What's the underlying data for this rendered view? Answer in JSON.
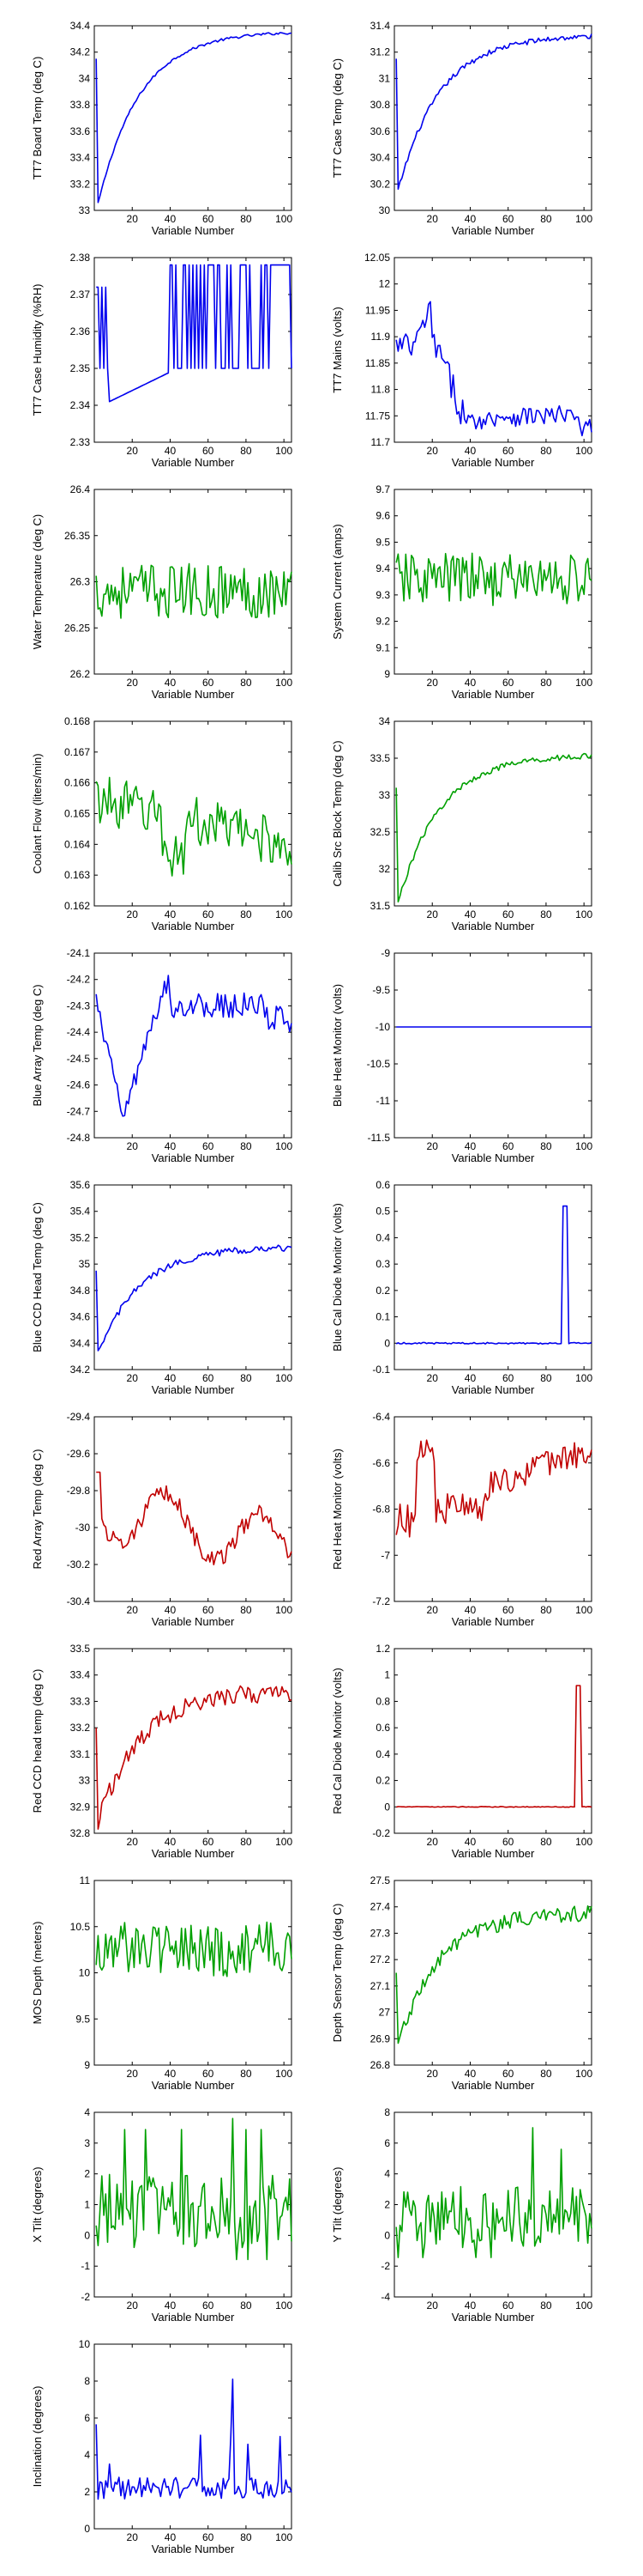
{
  "figure": {
    "xlabel": "Variable Number",
    "colors": {
      "blue": "#0000ee",
      "green": "#00a000",
      "red": "#c00000"
    }
  },
  "chart_data": [
    {
      "type": "line",
      "ylabel": "TT7 Board Temp (deg C)",
      "xlabel": "Variable Number",
      "color": "blue",
      "xlim": [
        0,
        104
      ],
      "xticks": [
        20,
        40,
        60,
        80,
        100
      ],
      "ylim": [
        33,
        34.4
      ],
      "yticks": [
        "33",
        "33.2",
        "33.4",
        "33.6",
        "33.8",
        "34",
        "34.2",
        "34.4"
      ],
      "pattern": "rise",
      "start": 33.05,
      "end": 34.36,
      "noise": 0.01,
      "spike_at_start": 34.15
    },
    {
      "type": "line",
      "ylabel": "TT7 Case Temp (deg C)",
      "xlabel": "Variable Number",
      "color": "blue",
      "xlim": [
        0,
        104
      ],
      "xticks": [
        20,
        40,
        60,
        80,
        100
      ],
      "ylim": [
        30,
        31.4
      ],
      "yticks": [
        "30",
        "30.2",
        "30.4",
        "30.6",
        "30.8",
        "31",
        "31.2",
        "31.4"
      ],
      "pattern": "rise",
      "start": 30.15,
      "end": 31.33,
      "noise": 0.02,
      "spike_at_start": 31.15
    },
    {
      "type": "line",
      "ylabel": "TT7 Case Humidity (%RH)",
      "xlabel": "Variable Number",
      "color": "blue",
      "xlim": [
        0,
        104
      ],
      "xticks": [
        20,
        40,
        60,
        80,
        100
      ],
      "ylim": [
        2.33,
        2.38
      ],
      "yticks": [
        "2.33",
        "2.34",
        "2.35",
        "2.36",
        "2.37",
        "2.38"
      ],
      "pattern": "humidity",
      "low": 2.35,
      "high": 2.372
    },
    {
      "type": "line",
      "ylabel": "TT7 Mains  (volts)",
      "xlabel": "Variable Number",
      "color": "blue",
      "xlim": [
        0,
        104
      ],
      "xticks": [
        20,
        40,
        60,
        80,
        100
      ],
      "ylim": [
        11.7,
        12.05
      ],
      "yticks": [
        "11.7",
        "11.75",
        "11.8",
        "11.85",
        "11.9",
        "11.95",
        "12",
        "12.05"
      ],
      "pattern": "mains"
    },
    {
      "type": "line",
      "ylabel": "Water Temperature (deg C)",
      "xlabel": "Variable Number",
      "color": "green",
      "xlim": [
        0,
        104
      ],
      "xticks": [
        20,
        40,
        60,
        80,
        100
      ],
      "ylim": [
        26.2,
        26.4
      ],
      "yticks": [
        "26.2",
        "26.25",
        "26.3",
        "26.35",
        "26.4"
      ],
      "pattern": "noise",
      "mean": 26.29,
      "amp": 0.03
    },
    {
      "type": "line",
      "ylabel": "System Current (amps)",
      "xlabel": "Variable Number",
      "color": "green",
      "xlim": [
        0,
        104
      ],
      "xticks": [
        20,
        40,
        60,
        80,
        100
      ],
      "ylim": [
        9,
        9.7
      ],
      "yticks": [
        "9",
        "9.1",
        "9.2",
        "9.3",
        "9.4",
        "9.5",
        "9.6",
        "9.7"
      ],
      "pattern": "noise",
      "mean": 9.36,
      "amp": 0.1
    },
    {
      "type": "line",
      "ylabel": "Coolant Flow (liters/min)",
      "xlabel": "Variable Number",
      "color": "green",
      "xlim": [
        0,
        104
      ],
      "xticks": [
        20,
        40,
        60,
        80,
        100
      ],
      "ylim": [
        0.162,
        0.168
      ],
      "yticks": [
        "0.162",
        "0.163",
        "0.164",
        "0.165",
        "0.166",
        "0.167",
        "0.168"
      ],
      "pattern": "coolant"
    },
    {
      "type": "line",
      "ylabel": "Calib Src Block Temp (deg C)",
      "xlabel": "Variable Number",
      "color": "green",
      "xlim": [
        0,
        104
      ],
      "xticks": [
        20,
        40,
        60,
        80,
        100
      ],
      "ylim": [
        31.5,
        34
      ],
      "yticks": [
        "31.5",
        "32",
        "32.5",
        "33",
        "33.5",
        "34"
      ],
      "pattern": "rise",
      "start": 31.55,
      "end": 33.55,
      "noise": 0.04,
      "spike_at_start": 33.1
    },
    {
      "type": "line",
      "ylabel": "Blue Array Temp (deg C)",
      "xlabel": "Variable Number",
      "color": "blue",
      "xlim": [
        0,
        104
      ],
      "xticks": [
        20,
        40,
        60,
        80,
        100
      ],
      "ylim": [
        -24.8,
        -24.1
      ],
      "yticks": [
        "-24.8",
        "-24.7",
        "-24.6",
        "-24.5",
        "-24.4",
        "-24.3",
        "-24.2",
        "-24.1"
      ],
      "pattern": "bluearray"
    },
    {
      "type": "line",
      "ylabel": "Blue Heat Monitor (volts)",
      "xlabel": "Variable Number",
      "color": "blue",
      "xlim": [
        0,
        104
      ],
      "xticks": [
        20,
        40,
        60,
        80,
        100
      ],
      "ylim": [
        -11.5,
        -9
      ],
      "yticks": [
        "-11.5",
        "-11",
        "-10.5",
        "-10",
        "-9.5",
        "-9"
      ],
      "pattern": "flat",
      "value": -10
    },
    {
      "type": "line",
      "ylabel": "Blue CCD Head Temp (deg C)",
      "xlabel": "Variable Number",
      "color": "blue",
      "xlim": [
        0,
        104
      ],
      "xticks": [
        20,
        40,
        60,
        80,
        100
      ],
      "ylim": [
        34.2,
        35.6
      ],
      "yticks": [
        "34.2",
        "34.4",
        "34.6",
        "34.8",
        "35",
        "35.2",
        "35.4",
        "35.6"
      ],
      "pattern": "rise",
      "start": 34.32,
      "end": 35.13,
      "noise": 0.025,
      "spike_at_start": 34.95
    },
    {
      "type": "line",
      "ylabel": "Blue Cal Diode Monitor (volts)",
      "xlabel": "Variable Number",
      "color": "blue",
      "xlim": [
        0,
        104
      ],
      "xticks": [
        20,
        40,
        60,
        80,
        100
      ],
      "ylim": [
        -0.1,
        0.6
      ],
      "yticks": [
        "-0.1",
        "0",
        "0.1",
        "0.2",
        "0.3",
        "0.4",
        "0.5",
        "0.6"
      ],
      "pattern": "pulse",
      "base": 0,
      "peak": 0.52,
      "from": 89,
      "to": 91
    },
    {
      "type": "line",
      "ylabel": "Red Array Temp (deg C)",
      "xlabel": "Variable Number",
      "color": "red",
      "xlim": [
        0,
        104
      ],
      "xticks": [
        20,
        40,
        60,
        80,
        100
      ],
      "ylim": [
        -30.4,
        -29.4
      ],
      "yticks": [
        "-30.4",
        "-30.2",
        "-30",
        "-29.8",
        "-29.6",
        "-29.4"
      ],
      "pattern": "redarray"
    },
    {
      "type": "line",
      "ylabel": "Red Heat Monitor (volts)",
      "xlabel": "Variable Number",
      "color": "red",
      "xlim": [
        0,
        104
      ],
      "xticks": [
        20,
        40,
        60,
        80,
        100
      ],
      "ylim": [
        -7.2,
        -6.4
      ],
      "yticks": [
        "-7.2",
        "-7",
        "-6.8",
        "-6.6",
        "-6.4"
      ],
      "pattern": "redheat"
    },
    {
      "type": "line",
      "ylabel": "Red CCD head temp (deg C)",
      "xlabel": "Variable Number",
      "color": "red",
      "xlim": [
        0,
        104
      ],
      "xticks": [
        20,
        40,
        60,
        80,
        100
      ],
      "ylim": [
        32.8,
        33.5
      ],
      "yticks": [
        "32.8",
        "32.9",
        "33",
        "33.1",
        "33.2",
        "33.3",
        "33.4",
        "33.5"
      ],
      "pattern": "rise",
      "start": 32.84,
      "end": 33.34,
      "noise": 0.035,
      "spike_at_start": 33.2
    },
    {
      "type": "line",
      "ylabel": "Red Cal Diode Monitor (volts)",
      "xlabel": "Variable Number",
      "color": "red",
      "xlim": [
        0,
        104
      ],
      "xticks": [
        20,
        40,
        60,
        80,
        100
      ],
      "ylim": [
        -0.2,
        1.2
      ],
      "yticks": [
        "-0.2",
        "0",
        "0.2",
        "0.4",
        "0.6",
        "0.8",
        "1",
        "1.2"
      ],
      "pattern": "pulse",
      "base": 0,
      "peak": 0.92,
      "from": 96,
      "to": 98
    },
    {
      "type": "line",
      "ylabel": "MOS Depth  (meters)",
      "xlabel": "Variable Number",
      "color": "green",
      "xlim": [
        0,
        104
      ],
      "xticks": [
        20,
        40,
        60,
        80,
        100
      ],
      "ylim": [
        9,
        11
      ],
      "yticks": [
        "9",
        "9.5",
        "10",
        "10.5",
        "11"
      ],
      "pattern": "noise",
      "mean": 10.25,
      "amp": 0.3
    },
    {
      "type": "line",
      "ylabel": "Depth Sensor Temp (deg C)",
      "xlabel": "Variable Number",
      "color": "green",
      "xlim": [
        0,
        104
      ],
      "xticks": [
        20,
        40,
        60,
        80,
        100
      ],
      "ylim": [
        26.8,
        27.5
      ],
      "yticks": [
        "26.8",
        "26.9",
        "27",
        "27.1",
        "27.2",
        "27.3",
        "27.4",
        "27.5"
      ],
      "pattern": "rise",
      "start": 26.88,
      "end": 27.38,
      "noise": 0.03,
      "spike_at_start": 27.15
    },
    {
      "type": "line",
      "ylabel": "X Tilt  (degrees)",
      "xlabel": "Variable Number",
      "color": "green",
      "xlim": [
        0,
        104
      ],
      "xticks": [
        20,
        40,
        60,
        80,
        100
      ],
      "ylim": [
        -2,
        4
      ],
      "yticks": [
        "-2",
        "-1",
        "0",
        "1",
        "2",
        "3",
        "4"
      ],
      "pattern": "tilt",
      "mean": 0.8,
      "amp": 1.2,
      "max": 3.8
    },
    {
      "type": "line",
      "ylabel": "Y Tilt  (degrees)",
      "xlabel": "Variable Number",
      "color": "green",
      "xlim": [
        0,
        104
      ],
      "xticks": [
        20,
        40,
        60,
        80,
        100
      ],
      "ylim": [
        -4,
        8
      ],
      "yticks": [
        "-4",
        "-2",
        "0",
        "2",
        "4",
        "6",
        "8"
      ],
      "pattern": "tilt",
      "mean": 1.2,
      "amp": 2.0,
      "max": 7
    },
    {
      "type": "line",
      "ylabel": "Inclination  (degrees)",
      "xlabel": "Variable Number",
      "color": "blue",
      "xlim": [
        0,
        104
      ],
      "xticks": [
        20,
        40,
        60,
        80,
        100
      ],
      "ylim": [
        0,
        10
      ],
      "yticks": [
        "0",
        "2",
        "4",
        "6",
        "8",
        "10"
      ],
      "pattern": "incl"
    }
  ]
}
